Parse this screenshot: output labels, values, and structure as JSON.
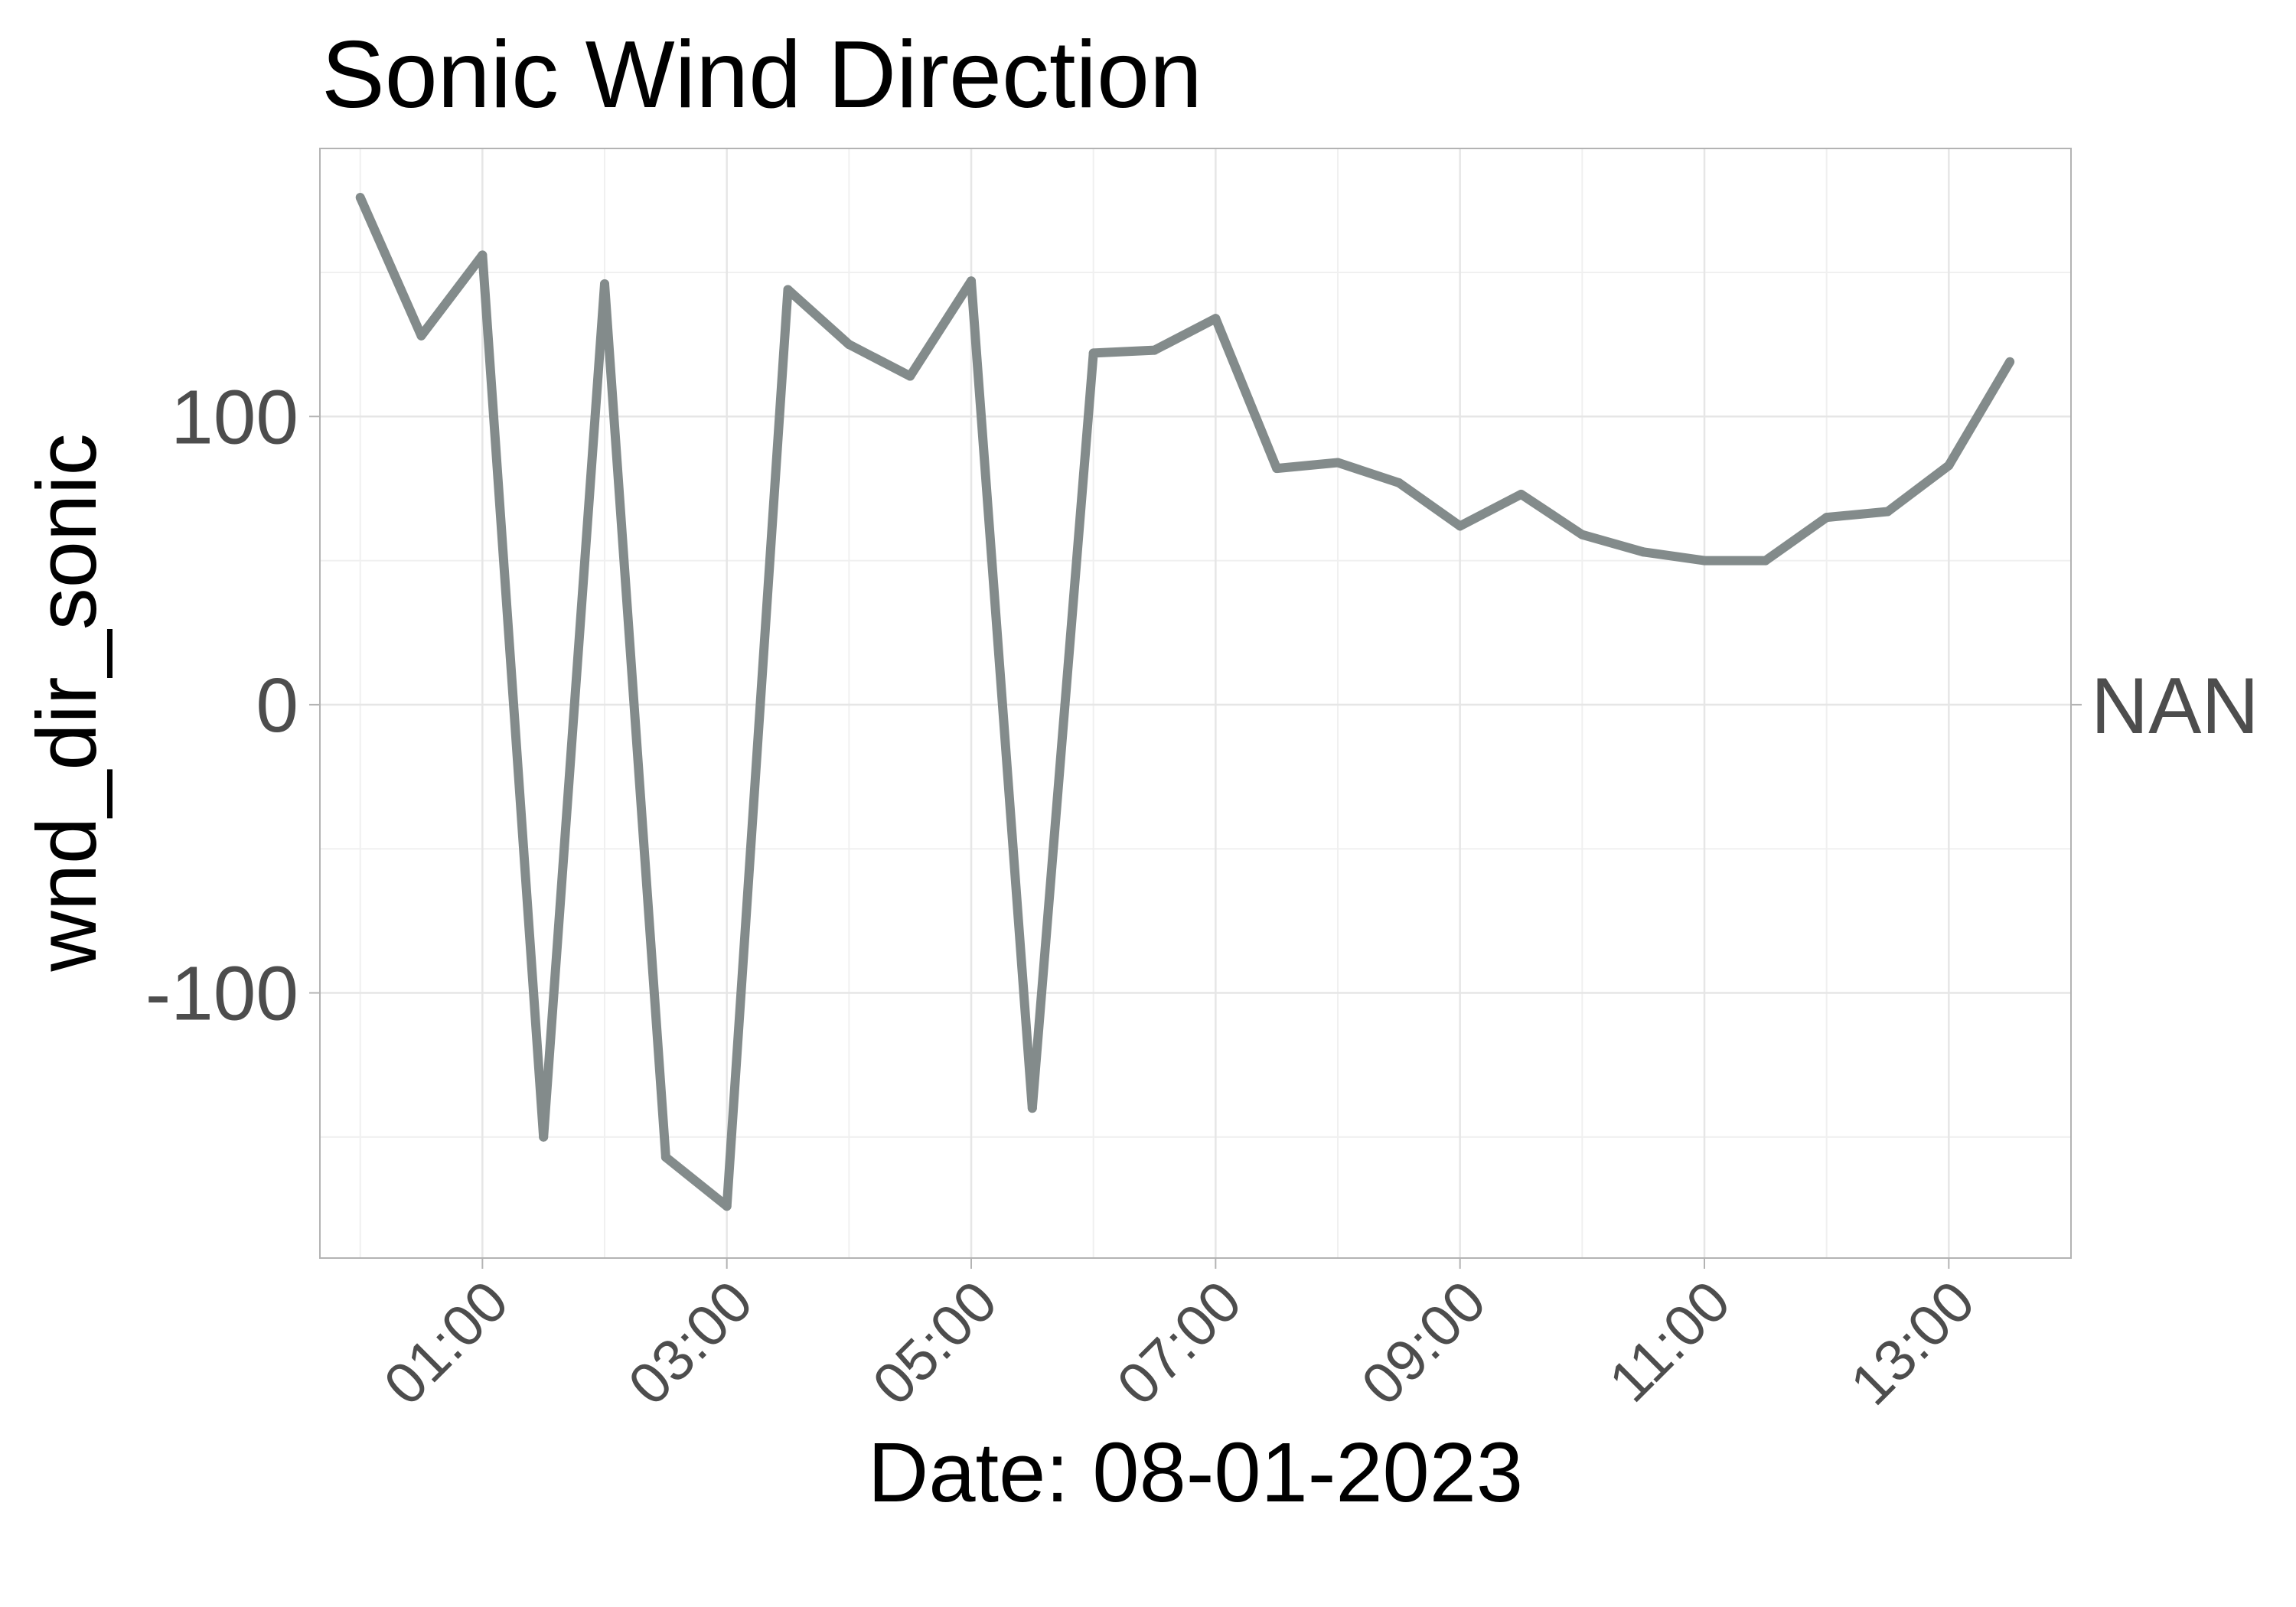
{
  "chart_data": {
    "type": "line",
    "title": "Sonic Wind Direction",
    "xlabel": "Date: 08-01-2023",
    "ylabel": "wnd_dir_sonic",
    "x_tick_labels": [
      "01:00",
      "03:00",
      "05:00",
      "07:00",
      "09:00",
      "11:00",
      "13:00"
    ],
    "x_tick_hours": [
      1,
      3,
      5,
      7,
      9,
      11,
      13
    ],
    "y_ticks": [
      -100,
      0,
      100
    ],
    "y_tick_labels": [
      "-100",
      "0",
      "100"
    ],
    "secondary_y_label": "NAN",
    "secondary_y_value": 0,
    "xlim": [
      -0.33,
      14.0
    ],
    "ylim": [
      -192,
      193
    ],
    "grid": true,
    "line_color": "#838b8b",
    "series": [
      {
        "x": [
          0.0,
          0.5,
          1.0,
          1.5,
          2.0,
          2.5,
          3.0,
          3.5,
          4.0,
          4.5,
          5.0,
          5.5,
          6.0,
          6.5,
          7.0,
          7.5,
          8.0,
          8.5,
          9.0,
          9.5,
          10.0,
          10.5,
          11.0,
          11.5,
          12.0,
          12.5,
          13.0,
          13.5
        ],
        "values": [
          176,
          128,
          156,
          -150,
          146,
          -157,
          -174,
          144,
          125,
          114,
          147,
          -140,
          122,
          123,
          134,
          82,
          84,
          77,
          62,
          73,
          59,
          53,
          50,
          50,
          65,
          67,
          83,
          119
        ]
      }
    ]
  }
}
